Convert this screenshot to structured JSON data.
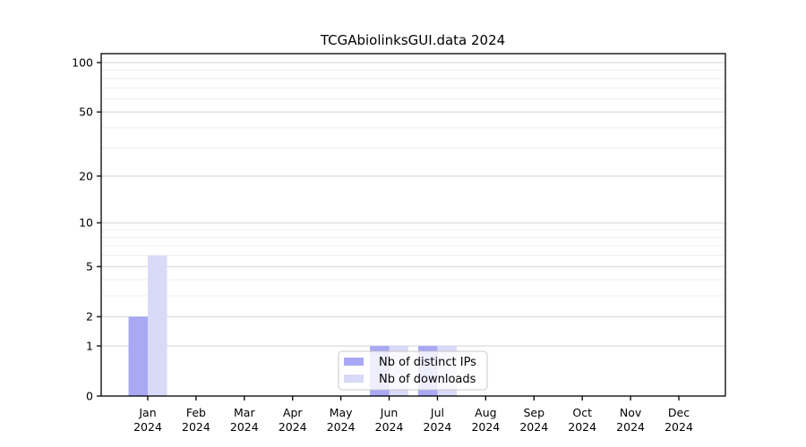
{
  "chart_data": {
    "type": "bar",
    "title": "TCGAbiolinksGUI.data 2024",
    "categories": [
      "Jan",
      "Feb",
      "Mar",
      "Apr",
      "May",
      "Jun",
      "Jul",
      "Aug",
      "Sep",
      "Oct",
      "Nov",
      "Dec"
    ],
    "year": "2024",
    "series": [
      {
        "name": "Nb of distinct IPs",
        "color": "#a8a8f5",
        "values": [
          2,
          0,
          0,
          0,
          0,
          1,
          1,
          0,
          0,
          0,
          0,
          0
        ]
      },
      {
        "name": "Nb of downloads",
        "color": "#d9d9f8",
        "values": [
          6,
          0,
          0,
          0,
          0,
          1,
          1,
          0,
          0,
          0,
          0,
          0
        ]
      }
    ],
    "yscale": "log1p",
    "yticks": [
      0,
      1,
      2,
      5,
      10,
      20,
      50,
      100
    ],
    "minor_gridlines": [
      3,
      4,
      6,
      7,
      8,
      9,
      30,
      40,
      60,
      70,
      80,
      90
    ],
    "ylim": [
      0,
      113
    ],
    "grid": true,
    "legend_position": "bottom-center",
    "colors": {
      "major_grid": "#d3d3d3",
      "minor_grid": "#ededed",
      "axis": "#000000",
      "background": "#ffffff",
      "legend_border": "#c8c8c8",
      "legend_bg": "#ffffff"
    }
  }
}
